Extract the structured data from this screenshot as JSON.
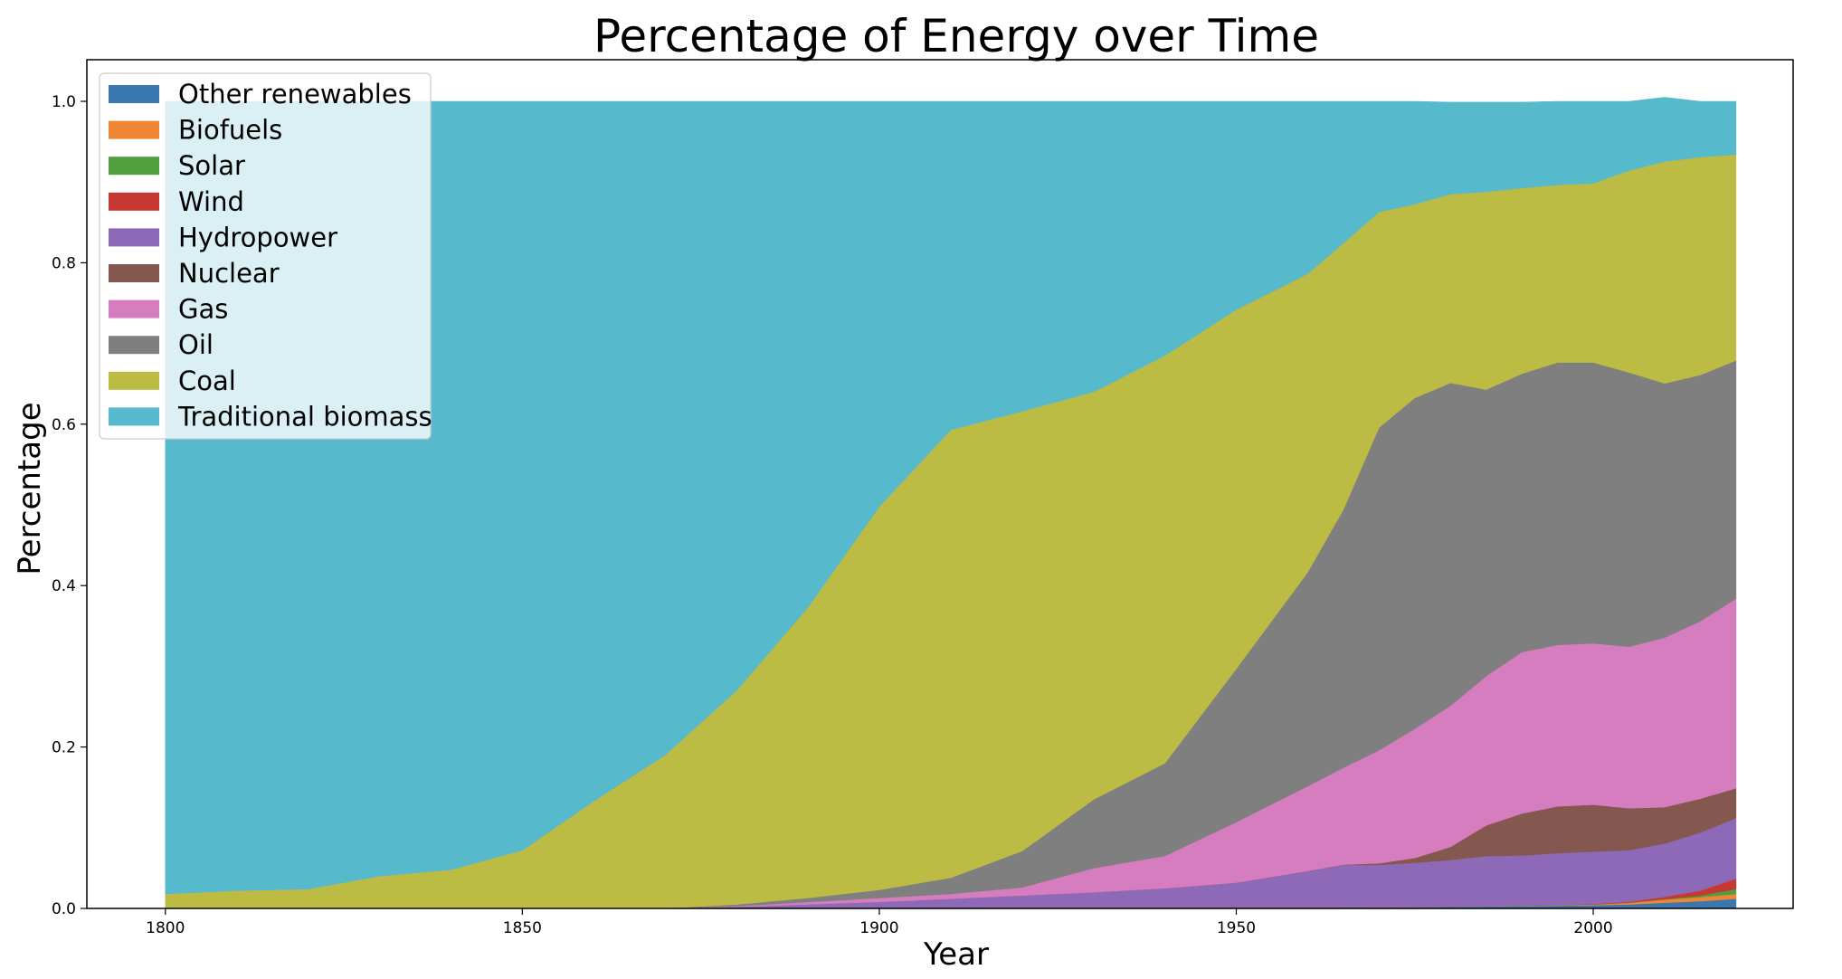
{
  "chart_data": {
    "type": "area",
    "stacked": true,
    "title": "Percentage of Energy over Time",
    "xlabel": "Year",
    "ylabel": "Percentage",
    "xlim": [
      1789,
      2028
    ],
    "ylim": [
      0,
      1.0
    ],
    "xticks": [
      1800,
      1850,
      1900,
      1950,
      2000
    ],
    "yticks": [
      0.0,
      0.2,
      0.4,
      0.6,
      0.8,
      1.0
    ],
    "legend_position": "top-left",
    "x": [
      1800,
      1810,
      1820,
      1830,
      1840,
      1850,
      1860,
      1870,
      1880,
      1890,
      1900,
      1910,
      1920,
      1930,
      1940,
      1950,
      1960,
      1965,
      1970,
      1975,
      1980,
      1985,
      1990,
      1995,
      2000,
      2005,
      2010,
      2015,
      2020
    ],
    "series": [
      {
        "name": "Other renewables",
        "color": "#3a76af",
        "values": [
          0,
          0,
          0,
          0,
          0,
          0,
          0,
          0,
          0,
          0,
          0,
          0,
          0,
          0,
          0,
          0,
          0.0005,
          0.0008,
          0.001,
          0.0015,
          0.002,
          0.0025,
          0.003,
          0.0035,
          0.004,
          0.005,
          0.007,
          0.009,
          0.012
        ]
      },
      {
        "name": "Biofuels",
        "color": "#ef8636",
        "values": [
          0,
          0,
          0,
          0,
          0,
          0,
          0,
          0,
          0,
          0,
          0,
          0,
          0,
          0,
          0,
          0,
          0,
          0,
          0,
          0,
          0.0002,
          0.0004,
          0.0006,
          0.0008,
          0.001,
          0.002,
          0.004,
          0.005,
          0.006
        ]
      },
      {
        "name": "Solar",
        "color": "#519e3e",
        "values": [
          0,
          0,
          0,
          0,
          0,
          0,
          0,
          0,
          0,
          0,
          0,
          0,
          0,
          0,
          0,
          0,
          0,
          0,
          0,
          0,
          0,
          0,
          0,
          0,
          0,
          0.0002,
          0.0005,
          0.002,
          0.006
        ]
      },
      {
        "name": "Wind",
        "color": "#c53932",
        "values": [
          0,
          0,
          0,
          0,
          0,
          0,
          0,
          0,
          0,
          0,
          0,
          0,
          0,
          0,
          0,
          0,
          0,
          0,
          0,
          0,
          0,
          0,
          0,
          0.0002,
          0.0005,
          0.001,
          0.003,
          0.006,
          0.013
        ]
      },
      {
        "name": "Hydropower",
        "color": "#8d69b8",
        "values": [
          0,
          0,
          0,
          0,
          0,
          0,
          0,
          0,
          0.002,
          0.005,
          0.008,
          0.012,
          0.016,
          0.02,
          0.025,
          0.032,
          0.046,
          0.053,
          0.053,
          0.055,
          0.058,
          0.062,
          0.062,
          0.064,
          0.065,
          0.064,
          0.066,
          0.072,
          0.075
        ]
      },
      {
        "name": "Nuclear",
        "color": "#84584e",
        "values": [
          0,
          0,
          0,
          0,
          0,
          0,
          0,
          0,
          0,
          0,
          0,
          0,
          0,
          0,
          0,
          0,
          0,
          0.0005,
          0.002,
          0.006,
          0.016,
          0.038,
          0.052,
          0.058,
          0.058,
          0.052,
          0.045,
          0.042,
          0.037
        ]
      },
      {
        "name": "Gas",
        "color": "#d57dbf",
        "values": [
          0,
          0,
          0,
          0,
          0,
          0,
          0,
          0,
          0.001,
          0.003,
          0.005,
          0.006,
          0.01,
          0.03,
          0.04,
          0.075,
          0.105,
          0.12,
          0.14,
          0.16,
          0.175,
          0.185,
          0.2,
          0.2,
          0.2,
          0.2,
          0.21,
          0.22,
          0.235
        ]
      },
      {
        "name": "Oil",
        "color": "#7f7f7f",
        "values": [
          0,
          0,
          0,
          0,
          0,
          0,
          0,
          0,
          0.002,
          0.005,
          0.01,
          0.02,
          0.045,
          0.085,
          0.115,
          0.19,
          0.265,
          0.32,
          0.4,
          0.41,
          0.4,
          0.355,
          0.345,
          0.35,
          0.348,
          0.34,
          0.315,
          0.305,
          0.295
        ]
      },
      {
        "name": "Coal",
        "color": "#bcbc45",
        "values": [
          0.018,
          0.022,
          0.024,
          0.04,
          0.048,
          0.072,
          0.133,
          0.19,
          0.265,
          0.36,
          0.475,
          0.555,
          0.545,
          0.505,
          0.505,
          0.445,
          0.37,
          0.33,
          0.267,
          0.24,
          0.234,
          0.245,
          0.23,
          0.22,
          0.222,
          0.25,
          0.275,
          0.27,
          0.255
        ]
      },
      {
        "name": "Traditional biomass",
        "color": "#56b9cc",
        "values": [
          0.982,
          0.978,
          0.976,
          0.96,
          0.952,
          0.928,
          0.867,
          0.81,
          0.73,
          0.627,
          0.502,
          0.407,
          0.384,
          0.36,
          0.315,
          0.258,
          0.2135,
          0.1757,
          0.137,
          0.1275,
          0.1138,
          0.1111,
          0.1064,
          0.1035,
          0.1015,
          0.0858,
          0.0795,
          0.069,
          0.066
        ]
      }
    ]
  }
}
